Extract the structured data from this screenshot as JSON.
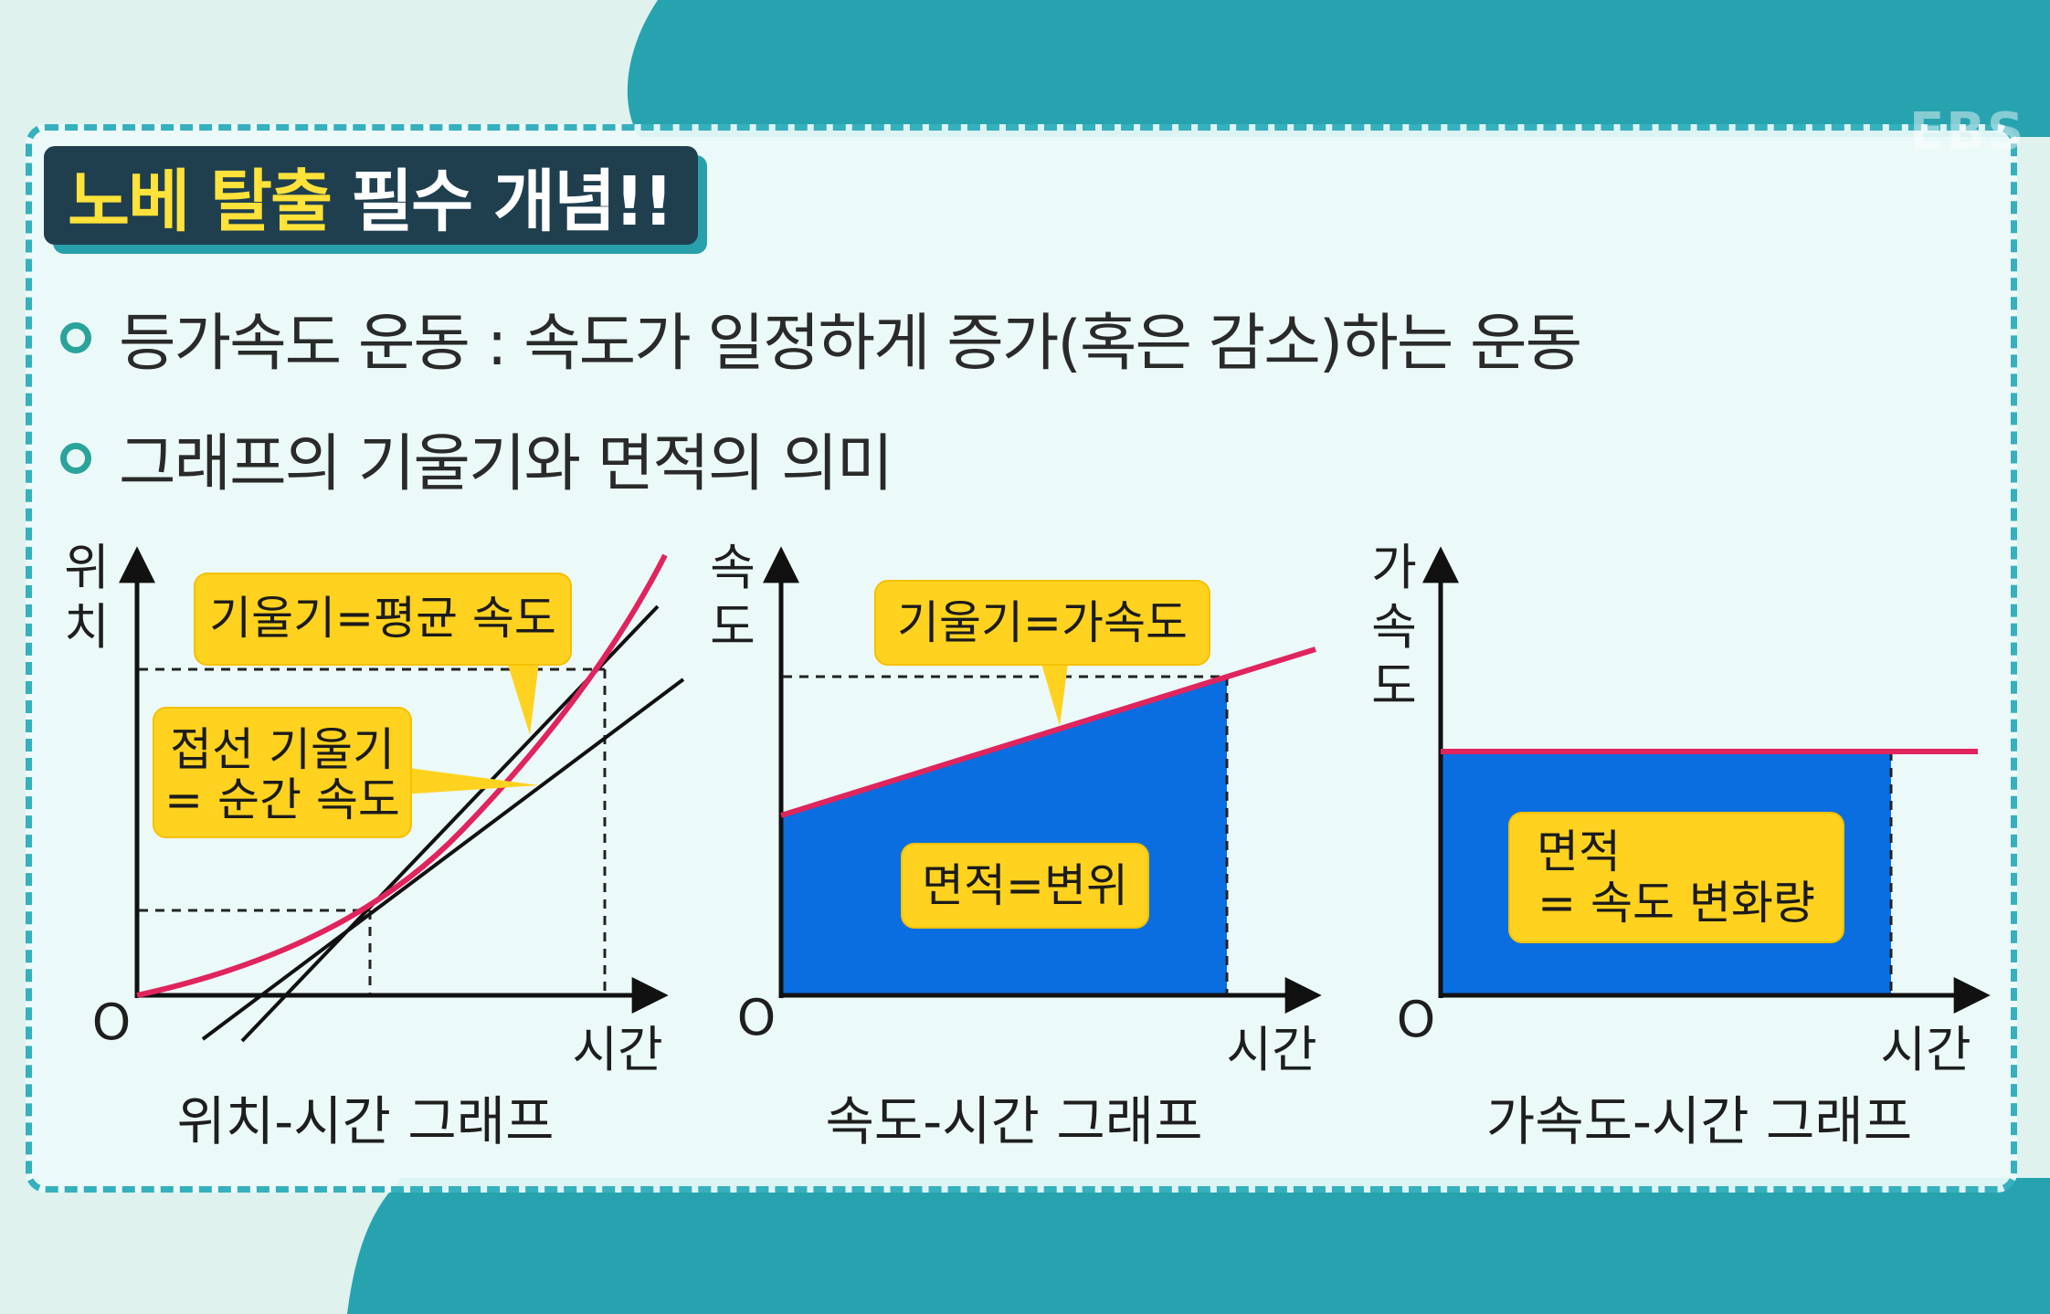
{
  "header": {
    "title_highlight": "노베 탈출",
    "title_rest": "필수 개념!!"
  },
  "watermark": "EBS",
  "bullets": [
    "등가속도 운동 : 속도가 일정하게 증가(혹은 감소)하는 운동",
    "그래프의 기울기와 면적의 의미"
  ],
  "graphs": {
    "position": {
      "y_label": [
        "위",
        "치"
      ],
      "x_label": "시간",
      "origin": "O",
      "caption": "위치-시간 그래프",
      "callouts": [
        "기울기=평균 속도",
        "접선 기울기",
        "= 순간 속도"
      ]
    },
    "velocity": {
      "y_label": [
        "속",
        "도"
      ],
      "x_label": "시간",
      "origin": "O",
      "caption": "속도-시간 그래프",
      "callouts": [
        "기울기=가속도",
        "면적=변위"
      ]
    },
    "acceleration": {
      "y_label": [
        "가",
        "속",
        "도"
      ],
      "x_label": "시간",
      "origin": "O",
      "caption": "가속도-시간 그래프",
      "callouts": [
        "면적",
        "= 속도 변화량"
      ]
    }
  },
  "colors": {
    "curve": "#e0245e",
    "area_fill": "#0a6ee0",
    "callout_fill": "#ffd21f",
    "title_bg": "#1f3f4f",
    "title_highlight": "#ffe23a",
    "border": "#35b0bd",
    "teal_bg": "#27a3b0"
  }
}
